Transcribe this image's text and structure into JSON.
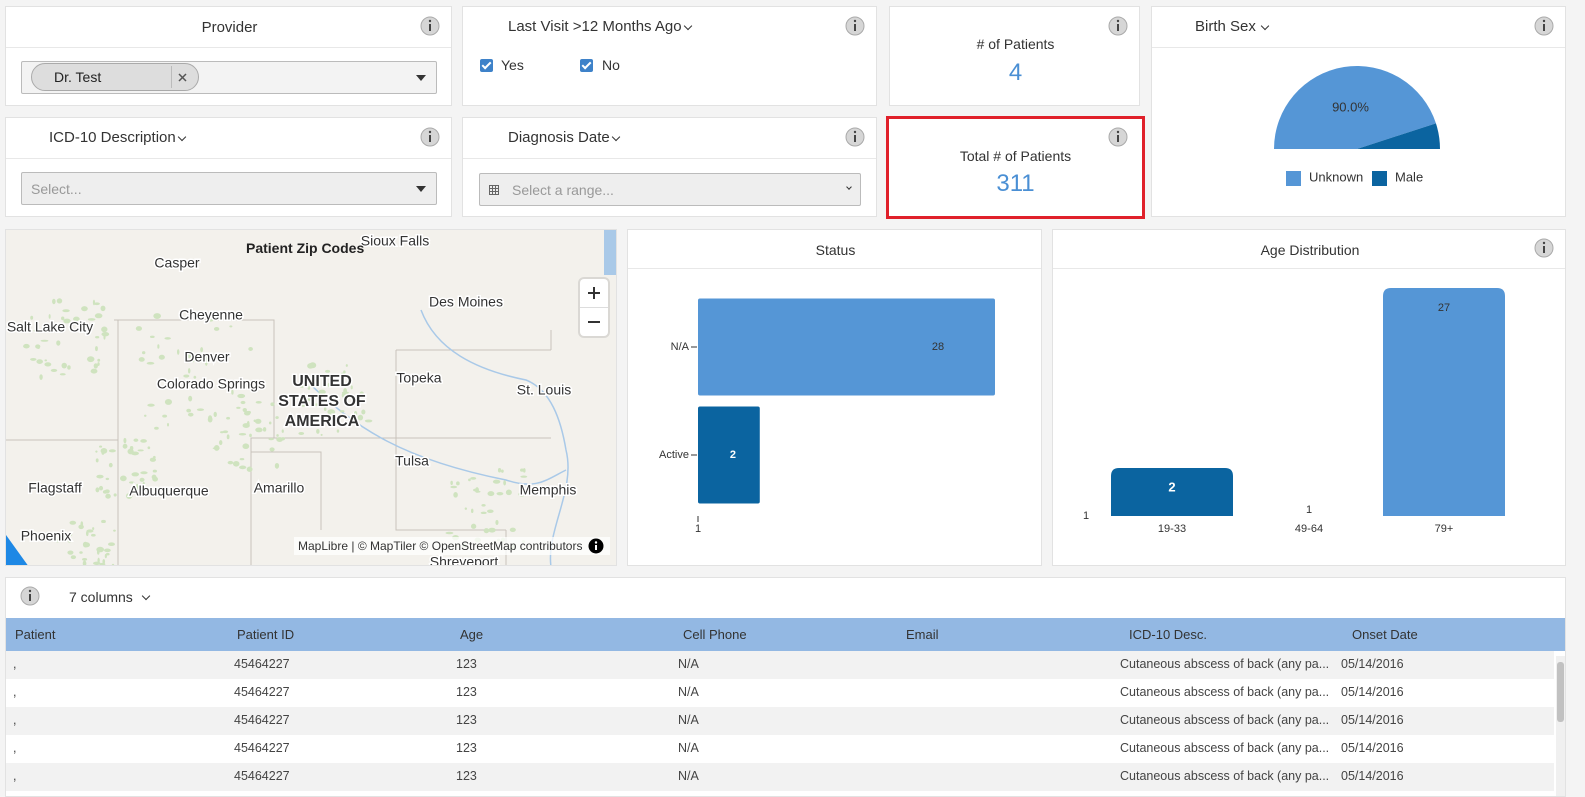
{
  "provider": {
    "title": "Provider",
    "selected": "Dr. Test"
  },
  "last_visit": {
    "title": "Last Visit >12 Months Ago",
    "options": [
      "Yes",
      "No"
    ]
  },
  "patients": {
    "title": "# of Patients",
    "value": 4
  },
  "total_patients": {
    "title": "Total # of Patients",
    "value": 311
  },
  "birth_sex": {
    "title": "Birth Sex",
    "chart": {
      "type": "pie",
      "categories": [
        "Unknown",
        "Male"
      ],
      "values": [
        90,
        10
      ],
      "value_labels": [
        "90.0%",
        null
      ],
      "colors": [
        "#5596d6",
        "#0b64a0"
      ]
    }
  },
  "icd10": {
    "title": "ICD-10 Description",
    "placeholder": "Select..."
  },
  "diagnosis_date": {
    "title": "Diagnosis Date",
    "placeholder": "Select a range..."
  },
  "map": {
    "title": "Patient Zip Codes",
    "labels": [
      "Sioux Falls",
      "Casper",
      "Salt Lake City",
      "Cheyenne",
      "Des Moines",
      "Denver",
      "Colorado Springs",
      "Topeka",
      "St. Louis",
      "Tulsa",
      "Flagstaff",
      "Albuquerque",
      "Amarillo",
      "Memphis",
      "Phoenix",
      "Shreveport"
    ],
    "country": [
      "UNITED",
      "STATES OF",
      "AMERICA"
    ],
    "attribution": "MapLibre | © MapTiler © OpenStreetMap contributors"
  },
  "status": {
    "title": "Status",
    "chart": {
      "type": "bar",
      "orientation": "horizontal",
      "categories": [
        "N/A",
        "Active"
      ],
      "values": [
        28,
        2
      ],
      "colors": [
        "#5596d6",
        "#0b64a0"
      ],
      "xlim": [
        1,
        28
      ],
      "xticks": [
        1
      ],
      "log": true
    }
  },
  "age": {
    "title": "Age Distribution",
    "chart": {
      "type": "bar",
      "categories": [
        "19-33",
        "49-64",
        "79+"
      ],
      "values": [
        2,
        1,
        27
      ],
      "colors": [
        "#0b64a0",
        "#0b64a0",
        "#5596d6"
      ],
      "ylim": [
        1,
        27
      ],
      "yticks": [
        1
      ],
      "log": true
    }
  },
  "table": {
    "columns_button": "7 columns",
    "columns": [
      "Patient",
      "Patient ID",
      "Age",
      "Cell Phone",
      "Email",
      "ICD-10 Desc.",
      "Onset Date"
    ],
    "rows": [
      {
        "patient": ",",
        "id": "45464227",
        "age": "123",
        "phone": "N/A",
        "icd": "Cutaneous abscess of back (any pa...",
        "onset": "05/14/2016"
      },
      {
        "patient": ",",
        "id": "45464227",
        "age": "123",
        "phone": "N/A",
        "icd": "Cutaneous abscess of back (any pa...",
        "onset": "05/14/2016"
      },
      {
        "patient": ",",
        "id": "45464227",
        "age": "123",
        "phone": "N/A",
        "icd": "Cutaneous abscess of back (any pa...",
        "onset": "05/14/2016"
      },
      {
        "patient": ",",
        "id": "45464227",
        "age": "123",
        "phone": "N/A",
        "icd": "Cutaneous abscess of back (any pa...",
        "onset": "05/14/2016"
      },
      {
        "patient": ",",
        "id": "45464227",
        "age": "123",
        "phone": "N/A",
        "icd": "Cutaneous abscess of back (any pa...",
        "onset": "05/14/2016"
      }
    ]
  }
}
